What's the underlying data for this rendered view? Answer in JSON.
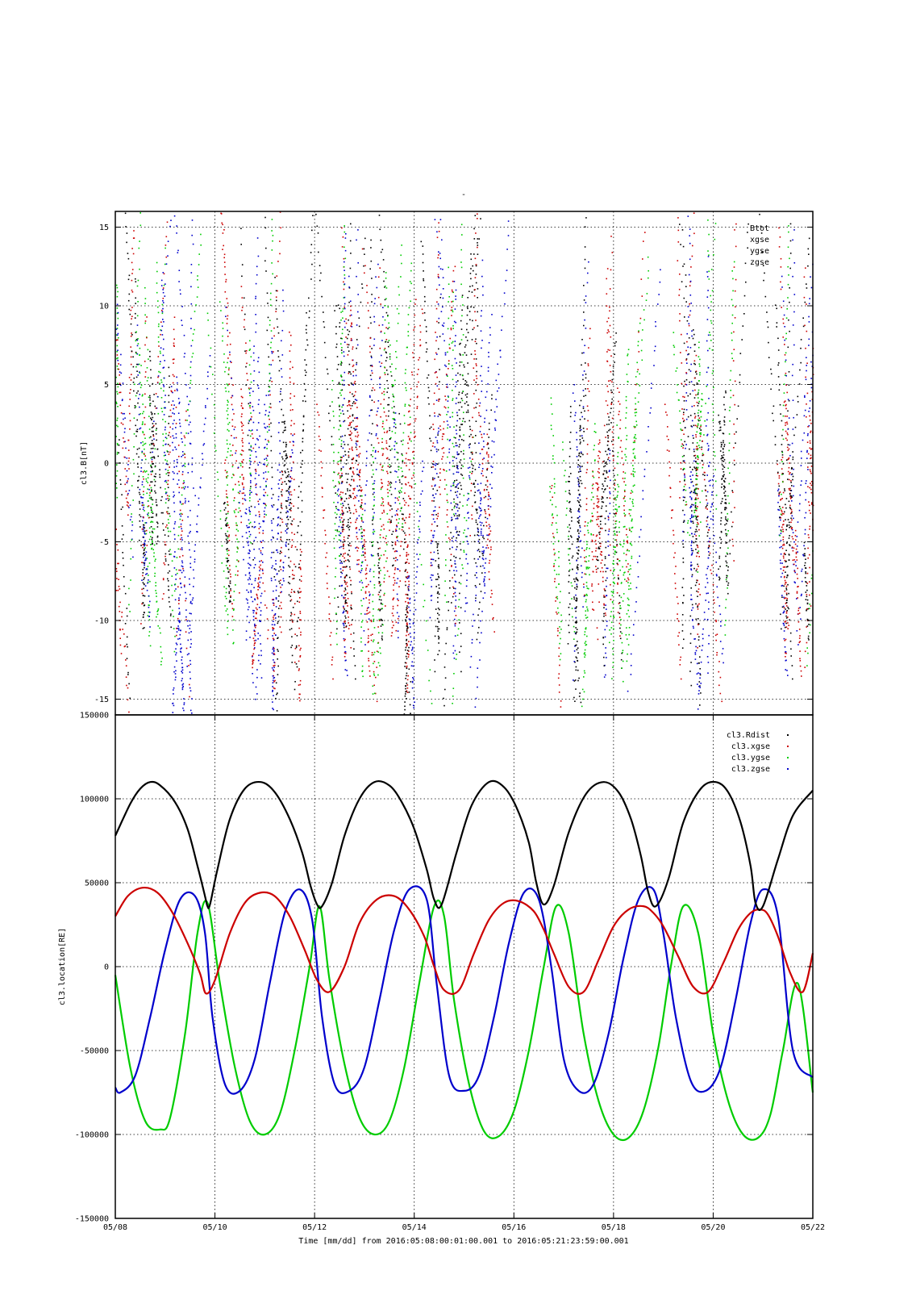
{
  "figure": {
    "top_title": "-",
    "xlabel": "Time [mm/dd]  from 2016:05:08:00:01:00.001  to  2016:05:21:23:59:00.001"
  },
  "chart_data": [
    {
      "type": "scatter",
      "ylabel": "cl3.B[nT]",
      "x_tick_labels": [
        "05/08",
        "05/10",
        "05/12",
        "05/14",
        "05/16",
        "05/18",
        "05/20",
        "05/22"
      ],
      "x_range_days": [
        0,
        14
      ],
      "ylim": [
        -16,
        16
      ],
      "y_ticks": [
        -15,
        -10,
        -5,
        0,
        5,
        10,
        15
      ],
      "y_tick_labels": [
        "-15",
        "-10",
        "-5",
        "0",
        "5",
        "10",
        "15"
      ],
      "grid": true,
      "legend_position": "top-right",
      "series": [
        {
          "name": "cl3.Btot",
          "color": "#000000"
        },
        {
          "name": "cl3.Bxgse",
          "color": "#cc0000"
        },
        {
          "name": "cl3.Bygse",
          "color": "#00cc00"
        },
        {
          "name": "cl3.Bzgse",
          "color": "#0000cc"
        }
      ],
      "legend_labels": [
        "Btot",
        "xgse",
        "ygse",
        "zgse"
      ],
      "activity_bands": [
        {
          "start": 0.0,
          "end": 1.6
        },
        {
          "start": 2.2,
          "end": 3.7
        },
        {
          "start": 4.2,
          "end": 5.5
        },
        {
          "start": 5.4,
          "end": 6.0
        },
        {
          "start": 6.3,
          "end": 7.6
        },
        {
          "start": 8.9,
          "end": 10.3
        },
        {
          "start": 11.2,
          "end": 12.4
        },
        {
          "start": 13.2,
          "end": 14.0
        }
      ]
    },
    {
      "type": "line",
      "ylabel": "cl3.location[RE]",
      "x_tick_labels": [
        "05/08",
        "05/10",
        "05/12",
        "05/14",
        "05/16",
        "05/18",
        "05/20",
        "05/22"
      ],
      "x_range_days": [
        0,
        14
      ],
      "ylim": [
        -150000,
        150000
      ],
      "y_ticks": [
        -150000,
        -100000,
        -50000,
        0,
        50000,
        100000,
        150000
      ],
      "y_tick_labels": [
        "-150000",
        "-100000",
        "-50000",
        "0",
        "50000",
        "100000",
        "150000"
      ],
      "grid": true,
      "legend_position": "top-right",
      "orbit_period_days": 2.27,
      "series": [
        {
          "name": "cl3.Rdist",
          "color": "#000000",
          "x": [
            0,
            0.3,
            0.5,
            0.7,
            0.9,
            1.2,
            1.45,
            1.65,
            1.8,
            1.85,
            1.9,
            2.05,
            2.3,
            2.6,
            2.92,
            3.2,
            3.5,
            3.75,
            3.92,
            4.05,
            4.15,
            4.35,
            4.6,
            4.9,
            5.2,
            5.5,
            5.75,
            6.0,
            6.25,
            6.4,
            6.55,
            6.85,
            7.15,
            7.5,
            7.8,
            8.05,
            8.3,
            8.45,
            8.6,
            8.8,
            9.1,
            9.45,
            9.8,
            10.1,
            10.35,
            10.55,
            10.7,
            10.85,
            11.1,
            11.4,
            11.75,
            12.05,
            12.3,
            12.55,
            12.75,
            12.85,
            13.0,
            13.3,
            13.6,
            14.0
          ],
          "y": [
            78000,
            97000,
            106000,
            110000,
            108000,
            98000,
            82000,
            60000,
            42000,
            36000,
            37000,
            58000,
            88000,
            106000,
            110000,
            104000,
            88000,
            68000,
            48000,
            37000,
            36000,
            50000,
            78000,
            100000,
            110000,
            108000,
            98000,
            82000,
            58000,
            40000,
            37000,
            68000,
            96000,
            110000,
            107000,
            95000,
            74000,
            50000,
            37000,
            48000,
            80000,
            103000,
            110000,
            104000,
            88000,
            66000,
            44000,
            36000,
            52000,
            86000,
            106000,
            110000,
            104000,
            86000,
            60000,
            38000,
            36000,
            64000,
            90000,
            105000
          ]
        },
        {
          "name": "cl3.xgse",
          "color": "#cc0000",
          "x": [
            0,
            0.25,
            0.55,
            0.85,
            1.15,
            1.45,
            1.7,
            1.82,
            2.0,
            2.3,
            2.6,
            2.9,
            3.2,
            3.5,
            3.8,
            4.05,
            4.3,
            4.6,
            4.9,
            5.25,
            5.6,
            5.9,
            6.2,
            6.4,
            6.6,
            6.9,
            7.2,
            7.5,
            7.8,
            8.1,
            8.4,
            8.6,
            8.8,
            9.1,
            9.4,
            9.7,
            10.0,
            10.3,
            10.6,
            10.8,
            11.0,
            11.3,
            11.6,
            11.9,
            12.2,
            12.5,
            12.75,
            12.95,
            13.1,
            13.3,
            13.55,
            13.8,
            14.0
          ],
          "y": [
            30000,
            42000,
            47000,
            44000,
            32000,
            14000,
            -4000,
            -16000,
            -8000,
            20000,
            38000,
            44000,
            42000,
            30000,
            10000,
            -8000,
            -15000,
            0,
            26000,
            40000,
            42000,
            34000,
            18000,
            0,
            -14000,
            -14000,
            8000,
            28000,
            38000,
            39000,
            33000,
            22000,
            8000,
            -12000,
            -15000,
            4000,
            24000,
            34000,
            36000,
            32000,
            24000,
            6000,
            -12000,
            -15000,
            2000,
            22000,
            32000,
            34000,
            31000,
            18000,
            -4000,
            -15000,
            8000
          ]
        },
        {
          "name": "cl3.ygse",
          "color": "#00cc00",
          "x": [
            0,
            0.3,
            0.6,
            0.9,
            1.1,
            1.4,
            1.65,
            1.85,
            2.1,
            2.4,
            2.7,
            3.0,
            3.3,
            3.6,
            3.9,
            4.1,
            4.3,
            4.6,
            4.9,
            5.2,
            5.5,
            5.8,
            6.1,
            6.4,
            6.6,
            6.8,
            7.1,
            7.4,
            7.7,
            8.0,
            8.3,
            8.6,
            8.85,
            9.1,
            9.4,
            9.7,
            10.0,
            10.3,
            10.6,
            10.9,
            11.15,
            11.4,
            11.7,
            12.0,
            12.3,
            12.6,
            12.9,
            13.15,
            13.4,
            13.7,
            14.0
          ],
          "y": [
            -5000,
            -60000,
            -92000,
            -97000,
            -90000,
            -40000,
            20000,
            38000,
            -10000,
            -60000,
            -92000,
            -100000,
            -88000,
            -50000,
            0,
            36000,
            -8000,
            -58000,
            -90000,
            -100000,
            -92000,
            -60000,
            -10000,
            36000,
            30000,
            -20000,
            -70000,
            -98000,
            -101000,
            -86000,
            -50000,
            0,
            36000,
            20000,
            -40000,
            -80000,
            -100000,
            -102000,
            -86000,
            -48000,
            0,
            36000,
            20000,
            -40000,
            -80000,
            -100000,
            -102000,
            -88000,
            -50000,
            -10000,
            -75000
          ]
        },
        {
          "name": "cl3.zgse",
          "color": "#0000cc",
          "x": [
            0,
            0.1,
            0.4,
            0.7,
            1.0,
            1.3,
            1.6,
            1.8,
            1.95,
            2.2,
            2.5,
            2.8,
            3.1,
            3.4,
            3.7,
            3.95,
            4.15,
            4.4,
            4.7,
            5.0,
            5.3,
            5.6,
            5.9,
            6.25,
            6.45,
            6.7,
            7.0,
            7.3,
            7.6,
            7.9,
            8.2,
            8.5,
            8.75,
            9.0,
            9.3,
            9.6,
            9.9,
            10.2,
            10.5,
            10.8,
            11.0,
            11.25,
            11.55,
            11.85,
            12.15,
            12.45,
            12.75,
            13.0,
            13.3,
            13.6,
            14.0
          ],
          "y": [
            -72000,
            -75000,
            -65000,
            -30000,
            10000,
            40000,
            42000,
            20000,
            -30000,
            -70000,
            -74000,
            -55000,
            -10000,
            32000,
            46000,
            28000,
            -30000,
            -70000,
            -74000,
            -60000,
            -20000,
            22000,
            46000,
            40000,
            -10000,
            -65000,
            -74000,
            -65000,
            -30000,
            14000,
            44000,
            40000,
            0,
            -55000,
            -74000,
            -70000,
            -40000,
            5000,
            40000,
            46000,
            20000,
            -30000,
            -68000,
            -74000,
            -60000,
            -20000,
            26000,
            46000,
            30000,
            -50000,
            -66000
          ]
        }
      ]
    }
  ]
}
